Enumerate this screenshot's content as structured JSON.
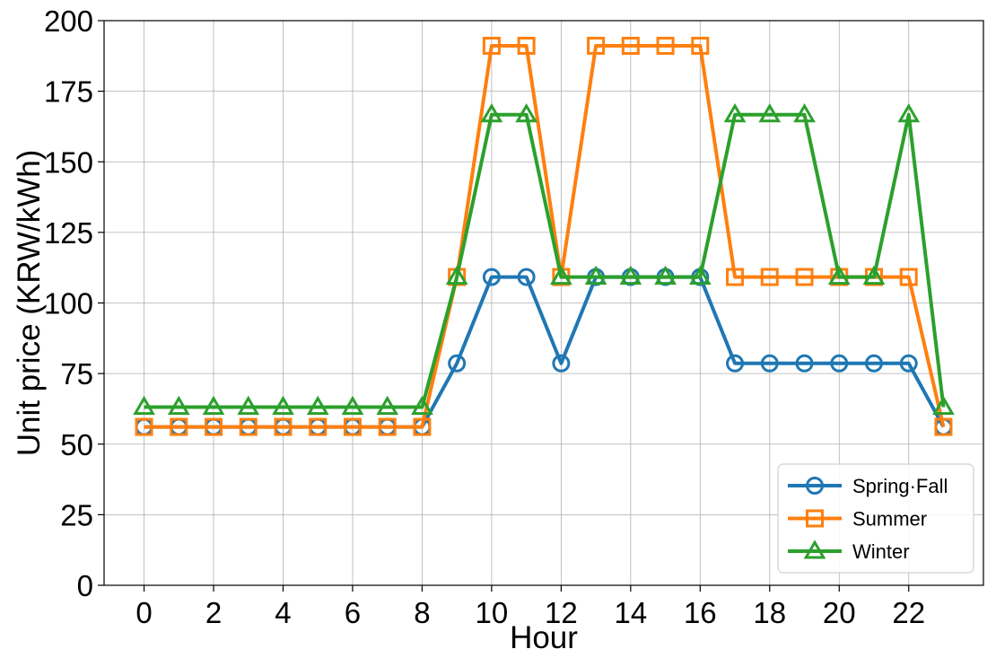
{
  "chart_data": {
    "type": "line",
    "xlabel": "Hour",
    "ylabel": "Unit price (KRW/kWh)",
    "xlim": [
      -1.15,
      24.15
    ],
    "ylim": [
      0,
      200
    ],
    "xticks": [
      0,
      2,
      4,
      6,
      8,
      10,
      12,
      14,
      16,
      18,
      20,
      22
    ],
    "yticks": [
      0,
      25,
      50,
      75,
      100,
      125,
      150,
      175,
      200
    ],
    "grid": true,
    "legend_position": "lower-right",
    "x": [
      0,
      1,
      2,
      3,
      4,
      5,
      6,
      7,
      8,
      9,
      10,
      11,
      12,
      13,
      14,
      15,
      16,
      17,
      18,
      19,
      20,
      21,
      22,
      23
    ],
    "series": [
      {
        "name": "Spring·Fall",
        "color": "#1f77b4",
        "marker": "circle",
        "values": [
          56.1,
          56.1,
          56.1,
          56.1,
          56.1,
          56.1,
          56.1,
          56.1,
          56.1,
          78.6,
          109.2,
          109.2,
          78.6,
          109.2,
          109.2,
          109.2,
          109.2,
          78.6,
          78.6,
          78.6,
          78.6,
          78.6,
          78.6,
          56.1
        ]
      },
      {
        "name": "Summer",
        "color": "#ff7f0e",
        "marker": "square",
        "values": [
          56.1,
          56.1,
          56.1,
          56.1,
          56.1,
          56.1,
          56.1,
          56.1,
          56.1,
          109.2,
          191.1,
          191.1,
          109.2,
          191.1,
          191.1,
          191.1,
          191.1,
          109.2,
          109.2,
          109.2,
          109.2,
          109.2,
          109.2,
          56.1
        ]
      },
      {
        "name": "Winter",
        "color": "#2ca02c",
        "marker": "triangle",
        "values": [
          63.1,
          63.1,
          63.1,
          63.1,
          63.1,
          63.1,
          63.1,
          63.1,
          63.1,
          109.2,
          166.7,
          166.7,
          109.2,
          109.2,
          109.2,
          109.2,
          109.2,
          166.7,
          166.7,
          166.7,
          109.2,
          109.2,
          166.7,
          63.1
        ]
      }
    ]
  }
}
